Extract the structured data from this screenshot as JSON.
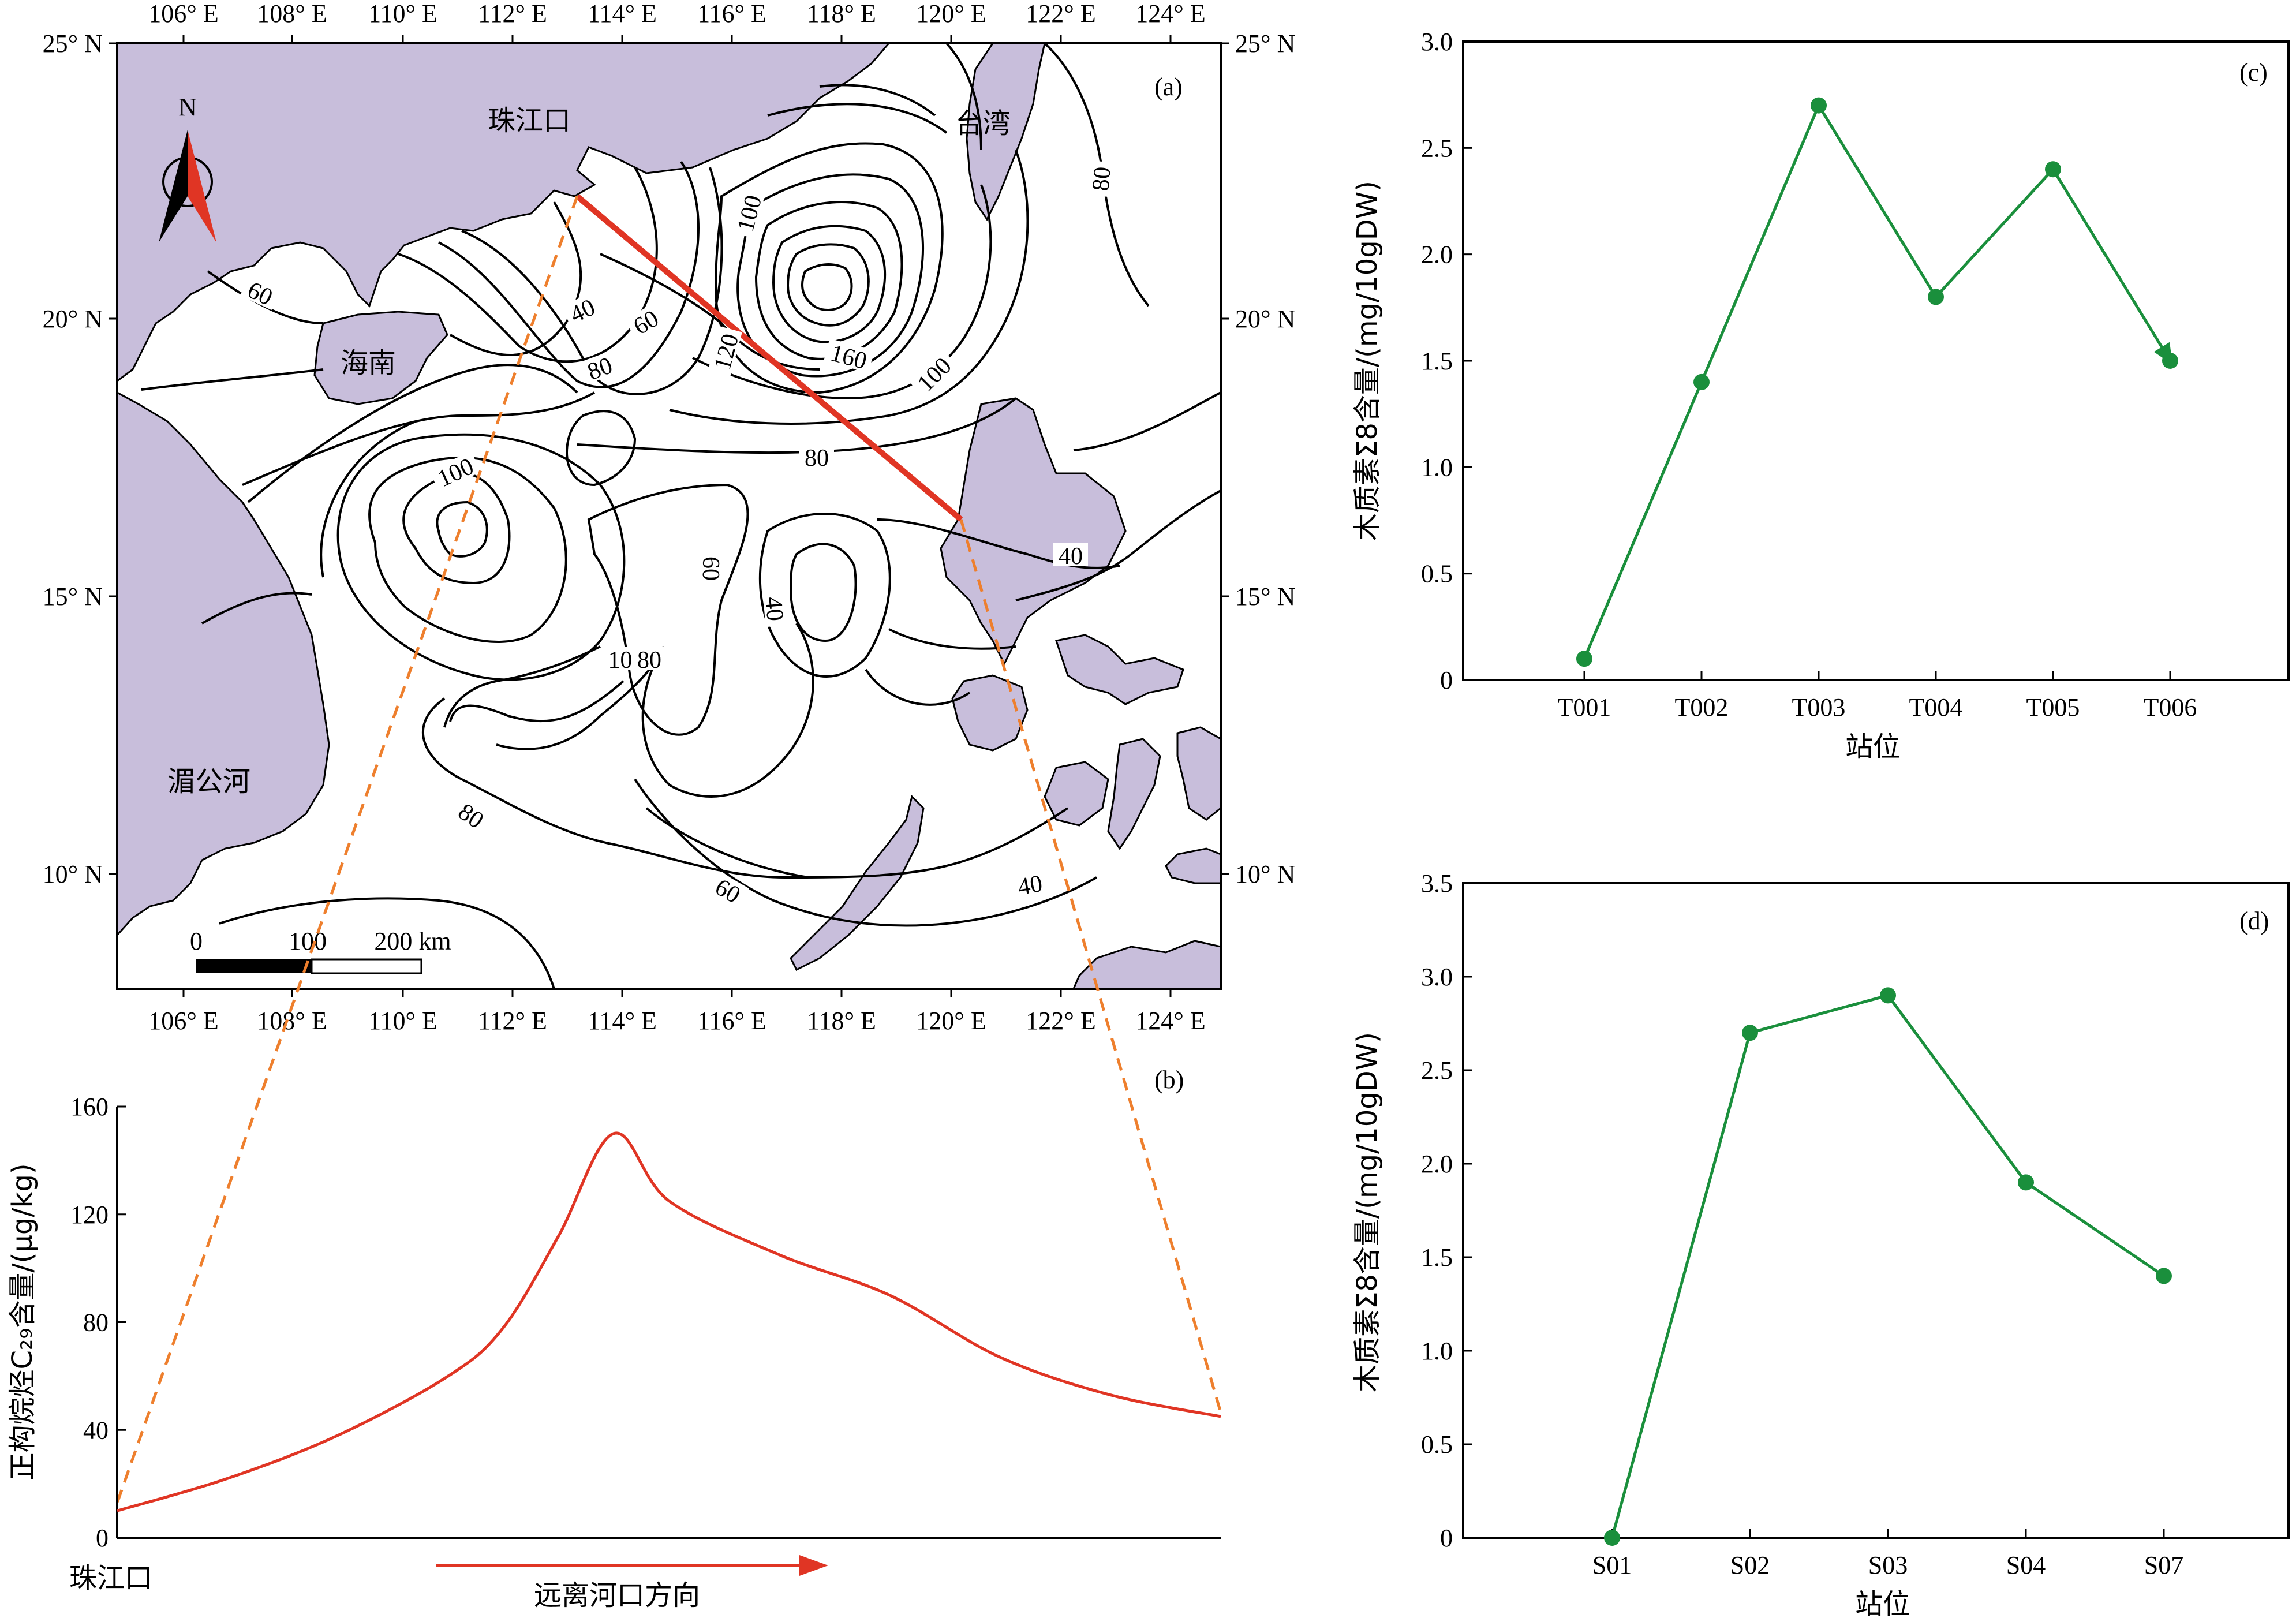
{
  "map": {
    "panel_label": "(a)",
    "lon_labels": [
      "106° E",
      "108° E",
      "110° E",
      "112° E",
      "114° E",
      "116° E",
      "118° E",
      "120° E",
      "122° E",
      "124° E"
    ],
    "lat_labels": [
      "25° N",
      "20° N",
      "15° N",
      "10° N"
    ],
    "place_names": {
      "pearl_river_mouth": "珠江口",
      "taiwan": "台湾",
      "hainan": "海南",
      "mekong": "湄公河"
    },
    "north_label": "N",
    "contour_labels": [
      "60",
      "40",
      "60",
      "80",
      "100",
      "100",
      "120",
      "160",
      "100",
      "80",
      "80",
      "100",
      "60",
      "40",
      "40",
      "80",
      "80",
      "60",
      "40"
    ],
    "scale_bar": {
      "ticks": [
        "0",
        "100",
        "200 km"
      ]
    },
    "colors": {
      "land": "#c8bedb",
      "transect": "#e03524",
      "contour": "#000000"
    }
  },
  "profile": {
    "panel_label": "(b)",
    "ylabel": "正构烷烃C₂₉含量/(μg/kg)",
    "yticks": [
      "0",
      "40",
      "80",
      "120",
      "160"
    ],
    "x_start_label": "珠江口",
    "direction_label": "远离河口方向",
    "line_color": "#e03524"
  },
  "chart_data": [
    {
      "type": "line",
      "title": "(b)",
      "xlabel": "",
      "ylabel": "正构烷烃C₂₉含量/(μg/kg)",
      "ylim": [
        0,
        160
      ],
      "x": [
        0,
        0.1,
        0.2,
        0.3,
        0.35,
        0.4,
        0.45,
        0.5,
        0.6,
        0.7,
        0.8,
        0.9,
        1.0
      ],
      "values": [
        10,
        22,
        38,
        60,
        78,
        112,
        150,
        125,
        105,
        90,
        67,
        53,
        45
      ]
    },
    {
      "type": "line",
      "title": "(c)",
      "xlabel": "站位",
      "ylabel": "木质素Σ8含量/(mg/10gDW)",
      "categories": [
        "T001",
        "T002",
        "T003",
        "T004",
        "T005",
        "T006"
      ],
      "values": [
        0.1,
        1.4,
        2.7,
        1.8,
        2.4,
        1.5
      ],
      "ylim": [
        0,
        3.0
      ],
      "yticks": [
        "0",
        "0.5",
        "1.0",
        "1.5",
        "2.0",
        "2.5",
        "3.0"
      ],
      "color": "#1a8f3c"
    },
    {
      "type": "line",
      "title": "(d)",
      "xlabel": "站位",
      "ylabel": "木质素Σ8含量/(mg/10gDW)",
      "categories": [
        "S01",
        "S02",
        "S03",
        "S04",
        "S07"
      ],
      "values": [
        0,
        2.7,
        2.9,
        1.9,
        1.4
      ],
      "ylim": [
        0,
        3.5
      ],
      "yticks": [
        "0",
        "0.5",
        "1.0",
        "1.5",
        "2.0",
        "2.5",
        "3.0",
        "3.5"
      ],
      "color": "#1a8f3c"
    }
  ]
}
